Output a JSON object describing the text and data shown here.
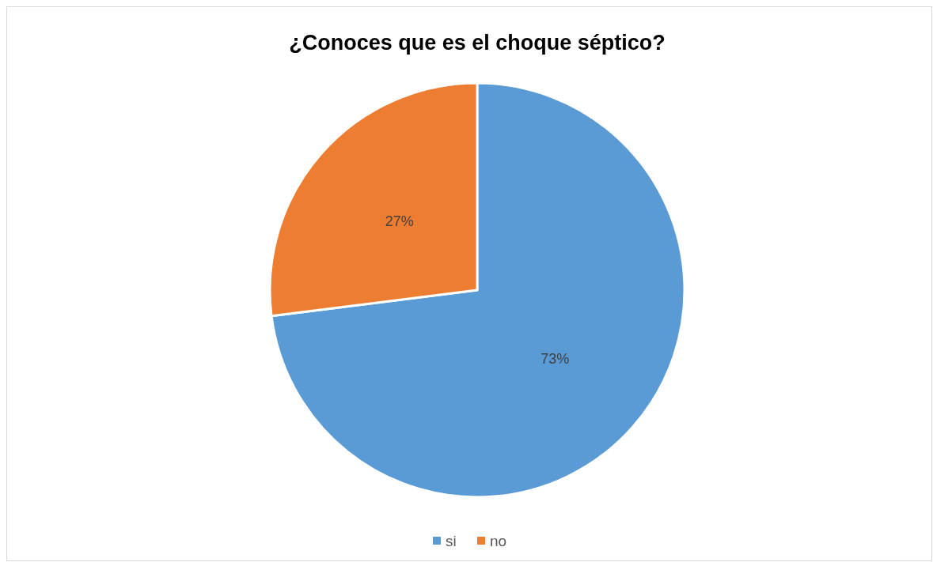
{
  "chart_data": {
    "type": "pie",
    "title": "¿Conoces que es el choque séptico?",
    "categories": [
      "si",
      "no"
    ],
    "values": [
      73,
      27
    ],
    "colors": [
      "#5b9bd5",
      "#ed7d31"
    ],
    "value_labels": [
      "73%",
      "27%"
    ],
    "legend": "bottom"
  }
}
